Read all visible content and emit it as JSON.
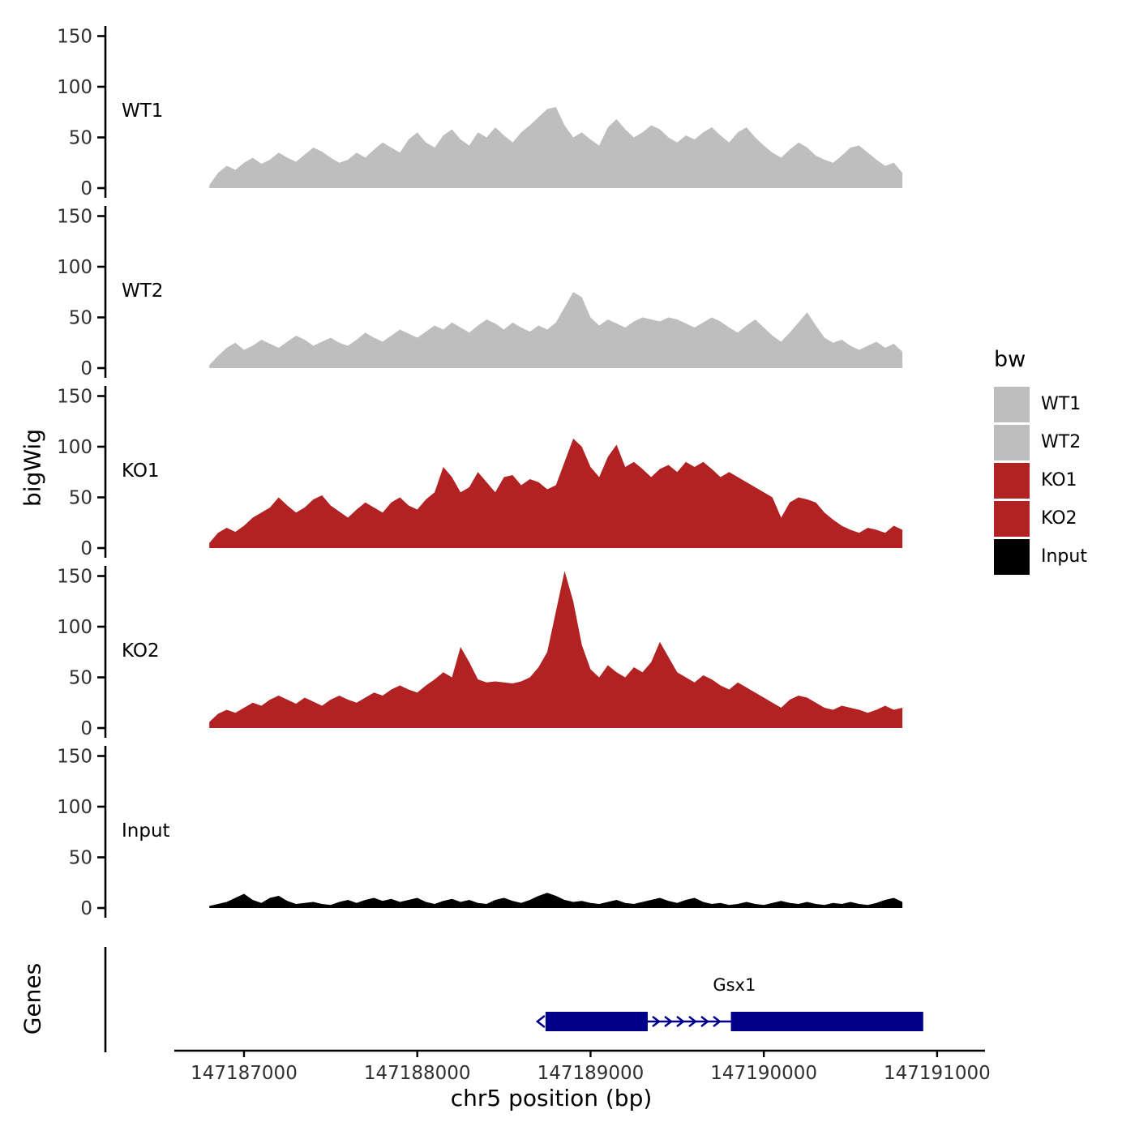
{
  "figure": {
    "y_axis_label": "bigWig",
    "genes_axis_label": "Genes",
    "x_axis_label": "chr5 position (bp)",
    "legend": {
      "title": "bw",
      "entries": [
        {
          "label": "WT1",
          "color": "#bebebe"
        },
        {
          "label": "WT2",
          "color": "#bebebe"
        },
        {
          "label": "KO1",
          "color": "#b22222"
        },
        {
          "label": "KO2",
          "color": "#b22222"
        },
        {
          "label": "Input",
          "color": "#000000"
        }
      ]
    }
  },
  "chart_data": {
    "type": "area",
    "title": "",
    "xlabel": "chr5 position (bp)",
    "ylabel": "bigWig",
    "x_domain": [
      147186200,
      147191300
    ],
    "x_ticks": [
      147187000,
      147188000,
      147189000,
      147190000,
      147191000
    ],
    "x_tick_labels": [
      "147187000",
      "147188000",
      "147189000",
      "147190000",
      "147191000"
    ],
    "y_ticks": [
      0,
      50,
      100,
      150
    ],
    "ylim": [
      0,
      165
    ],
    "grid": false,
    "legend_position": "right",
    "series_x_range": [
      147186800,
      147190800
    ],
    "series": [
      {
        "name": "WT1",
        "color": "#bebebe",
        "values": [
          3,
          15,
          22,
          18,
          25,
          30,
          24,
          28,
          35,
          30,
          26,
          33,
          40,
          36,
          30,
          25,
          28,
          35,
          30,
          38,
          45,
          40,
          35,
          48,
          55,
          45,
          40,
          52,
          58,
          48,
          42,
          55,
          50,
          60,
          52,
          45,
          55,
          62,
          70,
          78,
          80,
          62,
          50,
          55,
          48,
          42,
          60,
          68,
          58,
          50,
          55,
          62,
          58,
          50,
          45,
          52,
          48,
          55,
          60,
          52,
          45,
          55,
          60,
          50,
          42,
          35,
          30,
          38,
          45,
          40,
          32,
          28,
          25,
          32,
          40,
          42,
          35,
          28,
          22,
          25,
          15
        ]
      },
      {
        "name": "WT2",
        "color": "#bebebe",
        "values": [
          3,
          12,
          20,
          25,
          18,
          22,
          28,
          24,
          20,
          26,
          32,
          28,
          22,
          26,
          30,
          25,
          22,
          28,
          35,
          30,
          26,
          32,
          38,
          34,
          30,
          36,
          42,
          38,
          45,
          40,
          35,
          42,
          48,
          44,
          38,
          45,
          40,
          36,
          42,
          38,
          45,
          60,
          75,
          70,
          50,
          42,
          48,
          44,
          40,
          46,
          50,
          48,
          46,
          50,
          48,
          44,
          40,
          45,
          50,
          46,
          40,
          35,
          42,
          48,
          40,
          32,
          26,
          35,
          45,
          55,
          42,
          30,
          25,
          28,
          22,
          18,
          22,
          26,
          20,
          24,
          16
        ]
      },
      {
        "name": "KO1",
        "color": "#b22222",
        "values": [
          5,
          15,
          20,
          16,
          22,
          30,
          35,
          40,
          50,
          42,
          35,
          40,
          48,
          52,
          42,
          36,
          30,
          38,
          45,
          40,
          35,
          45,
          50,
          42,
          38,
          48,
          55,
          80,
          70,
          55,
          60,
          75,
          65,
          55,
          70,
          72,
          62,
          68,
          65,
          58,
          62,
          85,
          108,
          100,
          80,
          70,
          90,
          102,
          80,
          85,
          78,
          70,
          78,
          82,
          75,
          85,
          80,
          85,
          78,
          70,
          75,
          70,
          65,
          60,
          55,
          50,
          30,
          45,
          50,
          48,
          45,
          35,
          28,
          22,
          18,
          15,
          20,
          18,
          15,
          22,
          18
        ]
      },
      {
        "name": "KO2",
        "color": "#b22222",
        "values": [
          6,
          14,
          18,
          15,
          20,
          25,
          22,
          28,
          32,
          28,
          24,
          30,
          26,
          22,
          28,
          32,
          28,
          25,
          30,
          35,
          32,
          38,
          42,
          38,
          35,
          42,
          48,
          55,
          50,
          80,
          65,
          48,
          45,
          46,
          45,
          44,
          46,
          50,
          60,
          75,
          115,
          155,
          125,
          82,
          58,
          50,
          62,
          55,
          50,
          60,
          55,
          65,
          85,
          70,
          55,
          50,
          45,
          52,
          48,
          42,
          38,
          45,
          40,
          35,
          30,
          25,
          20,
          28,
          32,
          30,
          25,
          20,
          18,
          22,
          20,
          18,
          15,
          18,
          22,
          18,
          20
        ]
      },
      {
        "name": "Input",
        "color": "#000000",
        "values": [
          2,
          4,
          6,
          10,
          14,
          8,
          5,
          10,
          12,
          7,
          4,
          5,
          6,
          4,
          3,
          6,
          8,
          5,
          8,
          10,
          7,
          9,
          6,
          8,
          10,
          6,
          4,
          7,
          9,
          6,
          8,
          5,
          4,
          8,
          10,
          7,
          5,
          8,
          12,
          15,
          12,
          8,
          6,
          7,
          5,
          4,
          6,
          8,
          5,
          4,
          6,
          8,
          10,
          7,
          5,
          8,
          10,
          6,
          4,
          5,
          3,
          4,
          6,
          4,
          3,
          5,
          7,
          5,
          4,
          6,
          4,
          3,
          5,
          4,
          6,
          4,
          3,
          5,
          8,
          10,
          6
        ]
      }
    ],
    "gene_track": {
      "label": "Gsx1",
      "color": "#00008b",
      "exons": [
        {
          "start": 147188740,
          "end": 147189330
        },
        {
          "start": 147189810,
          "end": 147190920
        }
      ],
      "intron": {
        "start": 147189330,
        "end": 147189810
      }
    }
  }
}
